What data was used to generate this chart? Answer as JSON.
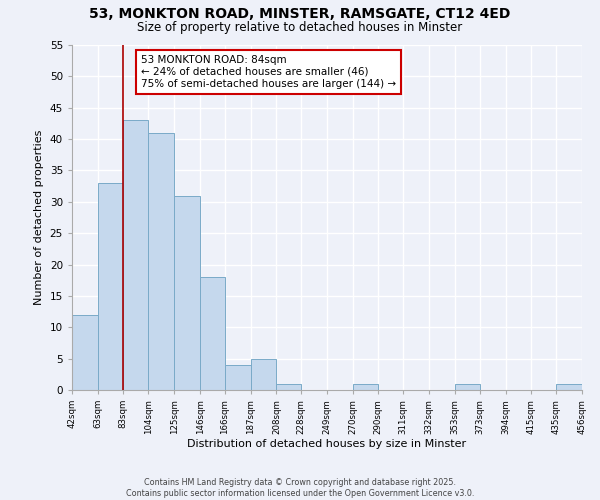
{
  "title_line1": "53, MONKTON ROAD, MINSTER, RAMSGATE, CT12 4ED",
  "title_line2": "Size of property relative to detached houses in Minster",
  "xlabel": "Distribution of detached houses by size in Minster",
  "ylabel": "Number of detached properties",
  "bar_color": "#c5d8ed",
  "bar_edge_color": "#7aaac8",
  "bin_edges": [
    42,
    63,
    83,
    104,
    125,
    146,
    166,
    187,
    208,
    228,
    249,
    270,
    290,
    311,
    332,
    353,
    373,
    394,
    415,
    435,
    456
  ],
  "counts": [
    12,
    33,
    43,
    41,
    31,
    18,
    4,
    5,
    1,
    0,
    0,
    1,
    0,
    0,
    0,
    1,
    0,
    0,
    0,
    1
  ],
  "tick_labels": [
    "42sqm",
    "63sqm",
    "83sqm",
    "104sqm",
    "125sqm",
    "146sqm",
    "166sqm",
    "187sqm",
    "208sqm",
    "228sqm",
    "249sqm",
    "270sqm",
    "290sqm",
    "311sqm",
    "332sqm",
    "353sqm",
    "373sqm",
    "394sqm",
    "415sqm",
    "435sqm",
    "456sqm"
  ],
  "property_line_x": 83,
  "property_line_color": "#aa0000",
  "annotation_line1": "53 MONKTON ROAD: 84sqm",
  "annotation_line2": "← 24% of detached houses are smaller (46)",
  "annotation_line3": "75% of semi-detached houses are larger (144) →",
  "ylim": [
    0,
    55
  ],
  "yticks": [
    0,
    5,
    10,
    15,
    20,
    25,
    30,
    35,
    40,
    45,
    50,
    55
  ],
  "background_color": "#eef1f9",
  "grid_color": "#ffffff",
  "footer_line1": "Contains HM Land Registry data © Crown copyright and database right 2025.",
  "footer_line2": "Contains public sector information licensed under the Open Government Licence v3.0."
}
